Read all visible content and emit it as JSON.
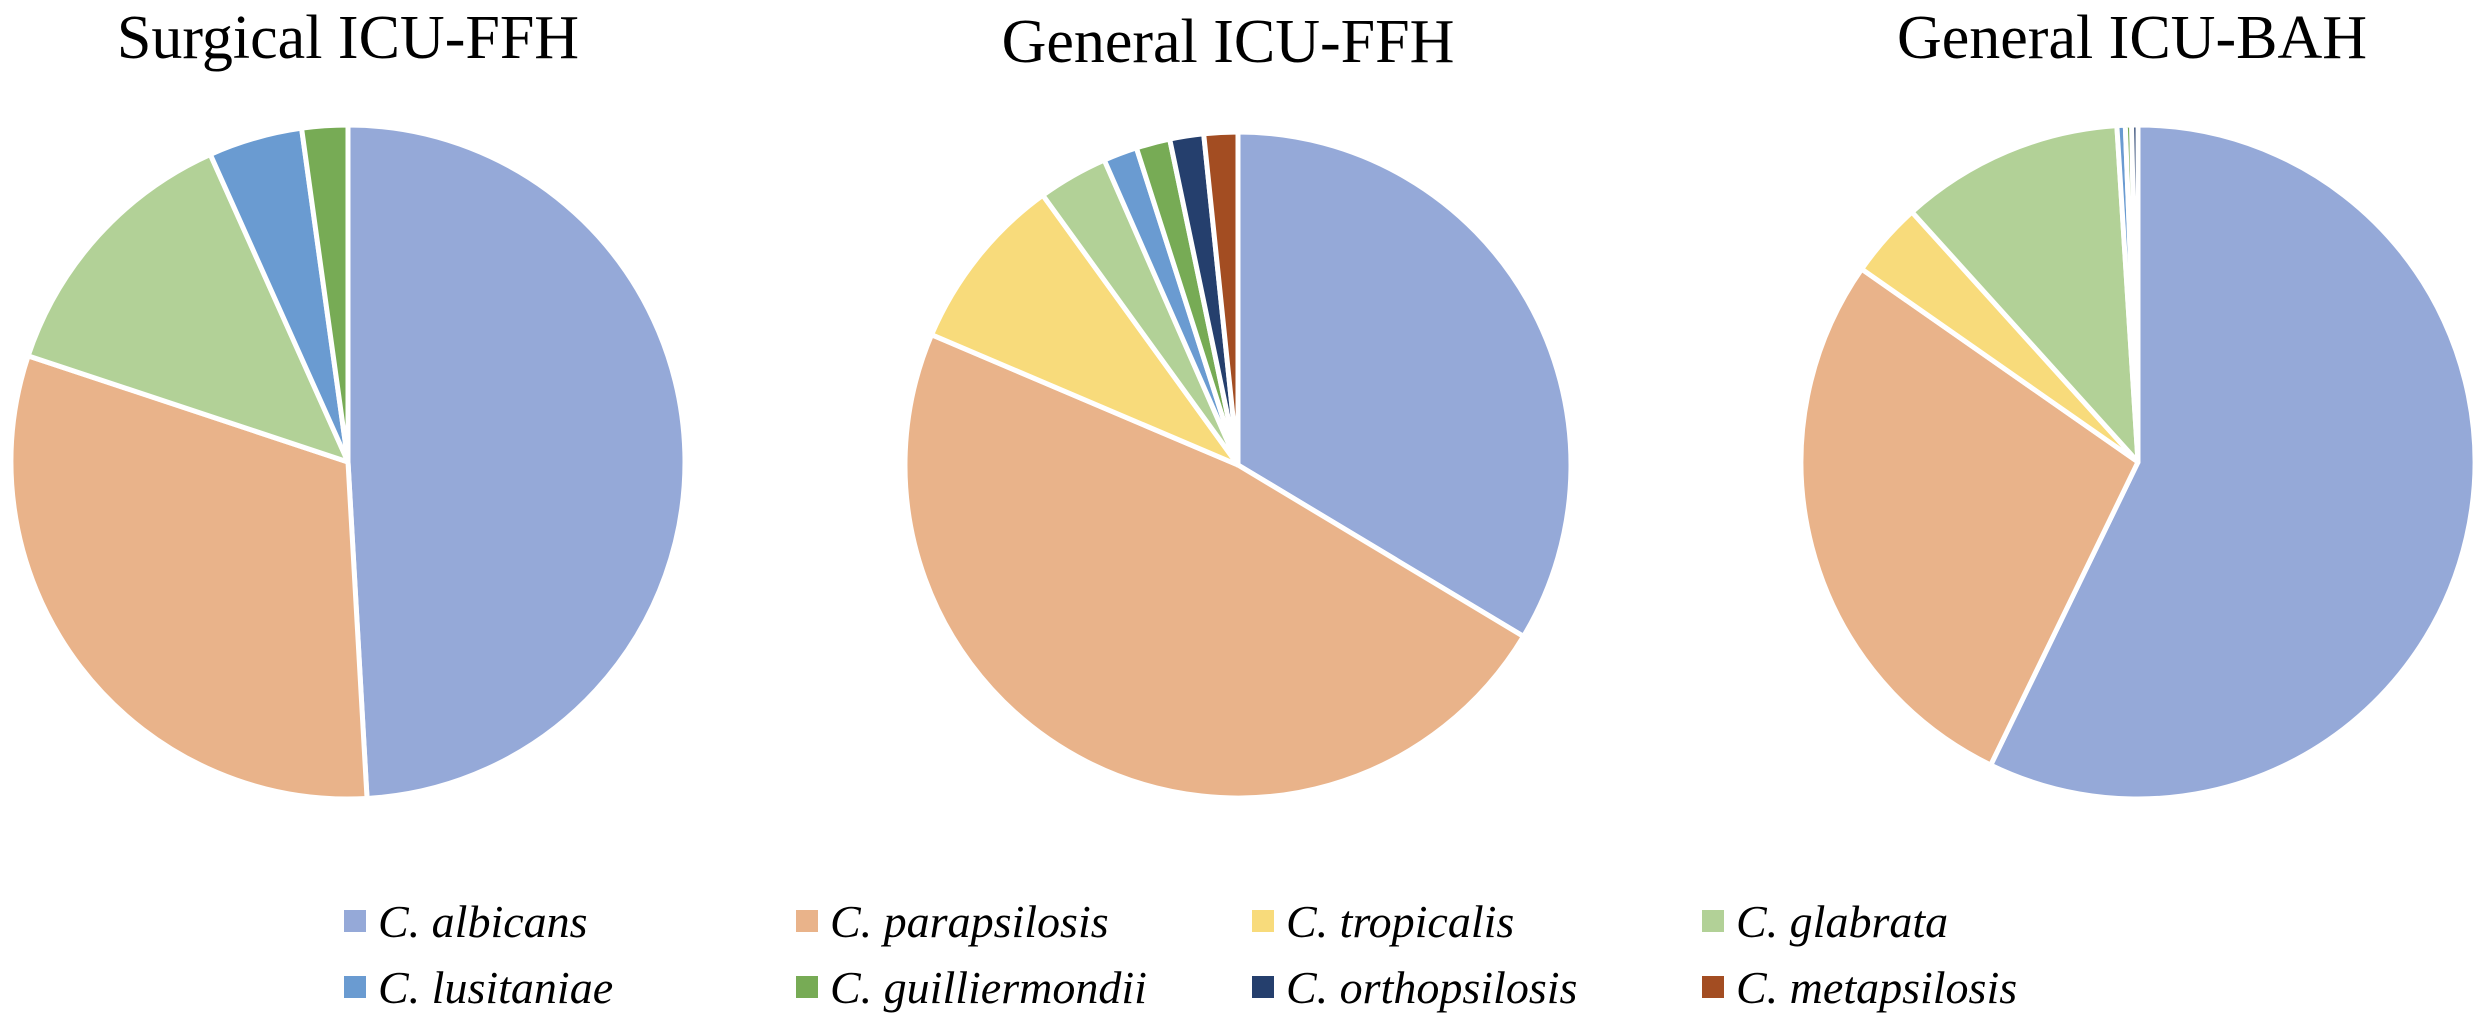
{
  "chart_data": [
    {
      "type": "pie",
      "title": "Surgical ICU-FFH",
      "categories": [
        "C. albicans",
        "C. parapsilosis",
        "C. tropicalis",
        "C. glabrata",
        "C. lusitaniae",
        "C. guilliermondii",
        "C. orthopsilosis",
        "C. metapsilosis"
      ],
      "values": [
        49.1,
        31.0,
        0,
        13.2,
        4.5,
        2.2,
        0,
        0
      ],
      "unit": "%"
    },
    {
      "type": "pie",
      "title": "General ICU-FFH",
      "categories": [
        "C. albicans",
        "C. parapsilosis",
        "C. tropicalis",
        "C. glabrata",
        "C. lusitaniae",
        "C. guilliermondii",
        "C. orthopsilosis",
        "C. metapsilosis"
      ],
      "values": [
        32.7,
        46.5,
        8.4,
        3.3,
        1.6,
        1.6,
        1.6,
        1.6
      ],
      "unit": "%"
    },
    {
      "type": "pie",
      "title": "General ICU-BAH",
      "categories": [
        "C. albicans",
        "C. parapsilosis",
        "C. tropicalis",
        "C. glabrata",
        "C. lusitaniae",
        "C. guilliermondii",
        "C. orthopsilosis",
        "C. metapsilosis"
      ],
      "values": [
        57.2,
        27.5,
        3.6,
        10.7,
        0.4,
        0.3,
        0.3,
        0
      ],
      "unit": "%"
    }
  ],
  "legend": {
    "placement": "bottom",
    "items": [
      {
        "label": "C. albicans",
        "color": "#95A9D8"
      },
      {
        "label": "C. parapsilosis",
        "color": "#E9B38A"
      },
      {
        "label": "C. tropicalis",
        "color": "#F8DB7B"
      },
      {
        "label": "C. glabrata",
        "color": "#B2D197"
      },
      {
        "label": "C. lusitaniae",
        "color": "#6A9BD1"
      },
      {
        "label": "C. guilliermondii",
        "color": "#77AB55"
      },
      {
        "label": "C. orthopsilosis",
        "color": "#253F6D"
      },
      {
        "label": "C. metapsilosis",
        "color": "#A34D22"
      }
    ]
  }
}
